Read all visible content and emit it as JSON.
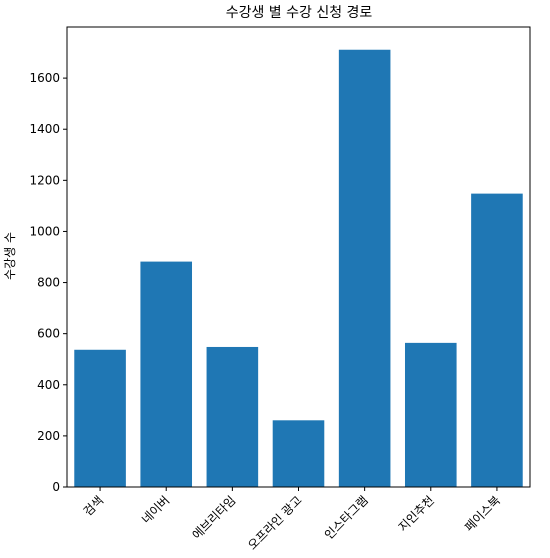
{
  "chart_data": {
    "type": "bar",
    "title": "수강생 별 수강 신청 경로",
    "xlabel": "",
    "ylabel": "수강생 수",
    "categories": [
      "검색",
      "네이버",
      "에브리타임",
      "오프라인 광고",
      "인스타그램",
      "지인추천",
      "페이스북"
    ],
    "values": [
      537,
      882,
      548,
      261,
      1711,
      564,
      1148
    ],
    "ylim": [
      0,
      1800
    ],
    "yticks": [
      0,
      200,
      400,
      600,
      800,
      1000,
      1200,
      1400,
      1600
    ],
    "bar_color": "#1f77b4",
    "grid": false
  }
}
